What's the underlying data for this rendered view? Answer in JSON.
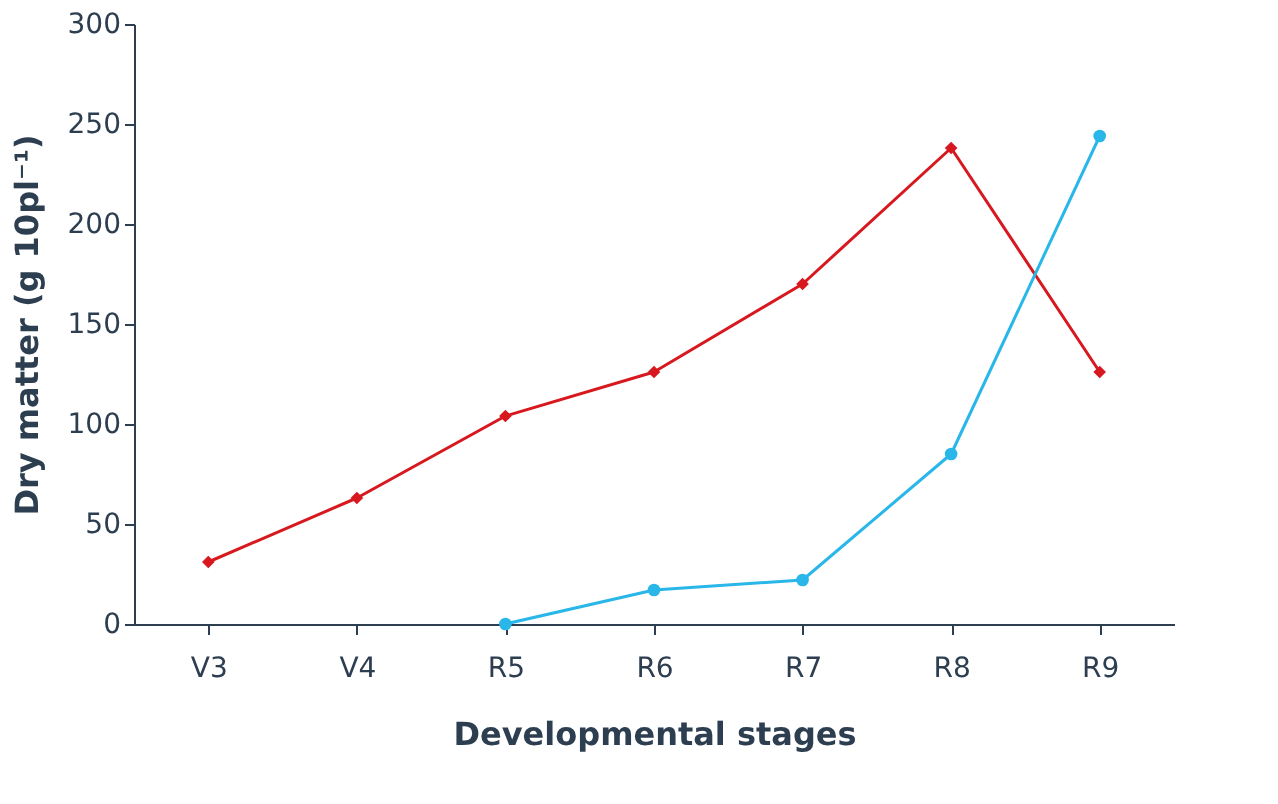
{
  "chart_data": {
    "type": "line",
    "xlabel": "Developmental stages",
    "ylabel": "Dry matter (g 10pl⁻¹)",
    "categories": [
      "V3",
      "V4",
      "R5",
      "R6",
      "R7",
      "R8",
      "R9"
    ],
    "series": [
      {
        "color": "#d7191f",
        "marker": "diamond",
        "values": [
          31,
          63,
          104,
          126,
          170,
          238,
          126
        ]
      },
      {
        "color": "#29b6e8",
        "marker": "circle",
        "values": [
          null,
          null,
          0,
          17,
          22,
          85,
          244
        ]
      }
    ],
    "ylim": [
      0,
      300
    ],
    "yticks": [
      0,
      50,
      100,
      150,
      200,
      250,
      300
    ],
    "grid": false,
    "line_style": "solid"
  }
}
